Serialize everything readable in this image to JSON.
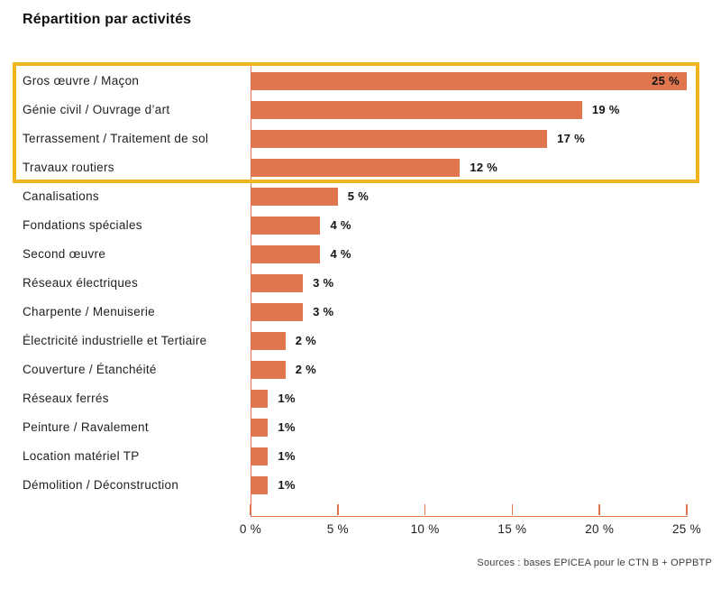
{
  "title": "Répartition par activités",
  "source": "Sources : bases EPICEA pour le CTN B + OPPBTP",
  "colors": {
    "bar": "#e0764e",
    "axis": "#e0764e",
    "highlight_border": "#f0b41c",
    "text": "#1a1a1a",
    "background": "#ffffff"
  },
  "chart_data": {
    "type": "bar",
    "orientation": "horizontal",
    "title": "Répartition par activités",
    "categories": [
      "Gros œuvre / Maçon",
      "Génie civil / Ouvrage d’art",
      "Terrassement / Traitement de sol",
      "Travaux routiers",
      "Canalisations",
      "Fondations spéciales",
      "Second œuvre",
      "Réseaux électriques",
      "Charpente / Menuiserie",
      "Électricité industrielle et Tertiaire",
      "Couverture / Étanchéité",
      "Réseaux ferrés",
      "Peinture / Ravalement",
      "Location matériel TP",
      "Démolition / Déconstruction"
    ],
    "values": [
      25,
      19,
      17,
      12,
      5,
      4,
      4,
      3,
      3,
      2,
      2,
      1,
      1,
      1,
      1
    ],
    "value_labels": [
      "25 %",
      "19 %",
      "17 %",
      "12 %",
      "5 %",
      "4 %",
      "4 %",
      "3 %",
      "3 %",
      "2 %",
      "2 %",
      "1%",
      "1%",
      "1%",
      "1%"
    ],
    "value_label_inside": [
      true,
      false,
      false,
      false,
      false,
      false,
      false,
      false,
      false,
      false,
      false,
      false,
      false,
      false,
      false
    ],
    "highlighted_categories": [
      "Gros œuvre / Maçon",
      "Génie civil / Ouvrage d’art",
      "Terrassement / Traitement de sol",
      "Travaux routiers"
    ],
    "highlight_count": 4,
    "xlabel": "",
    "ylabel": "",
    "xlim": [
      0,
      25
    ],
    "x_tick_values": [
      0,
      5,
      10,
      15,
      20,
      25
    ],
    "x_tick_labels": [
      "0 %",
      "5 %",
      "10 %",
      "15 %",
      "20 %",
      "25 %"
    ],
    "grid": false,
    "legend": null,
    "source": "Sources : bases EPICEA pour le CTN B + OPPBTP"
  }
}
